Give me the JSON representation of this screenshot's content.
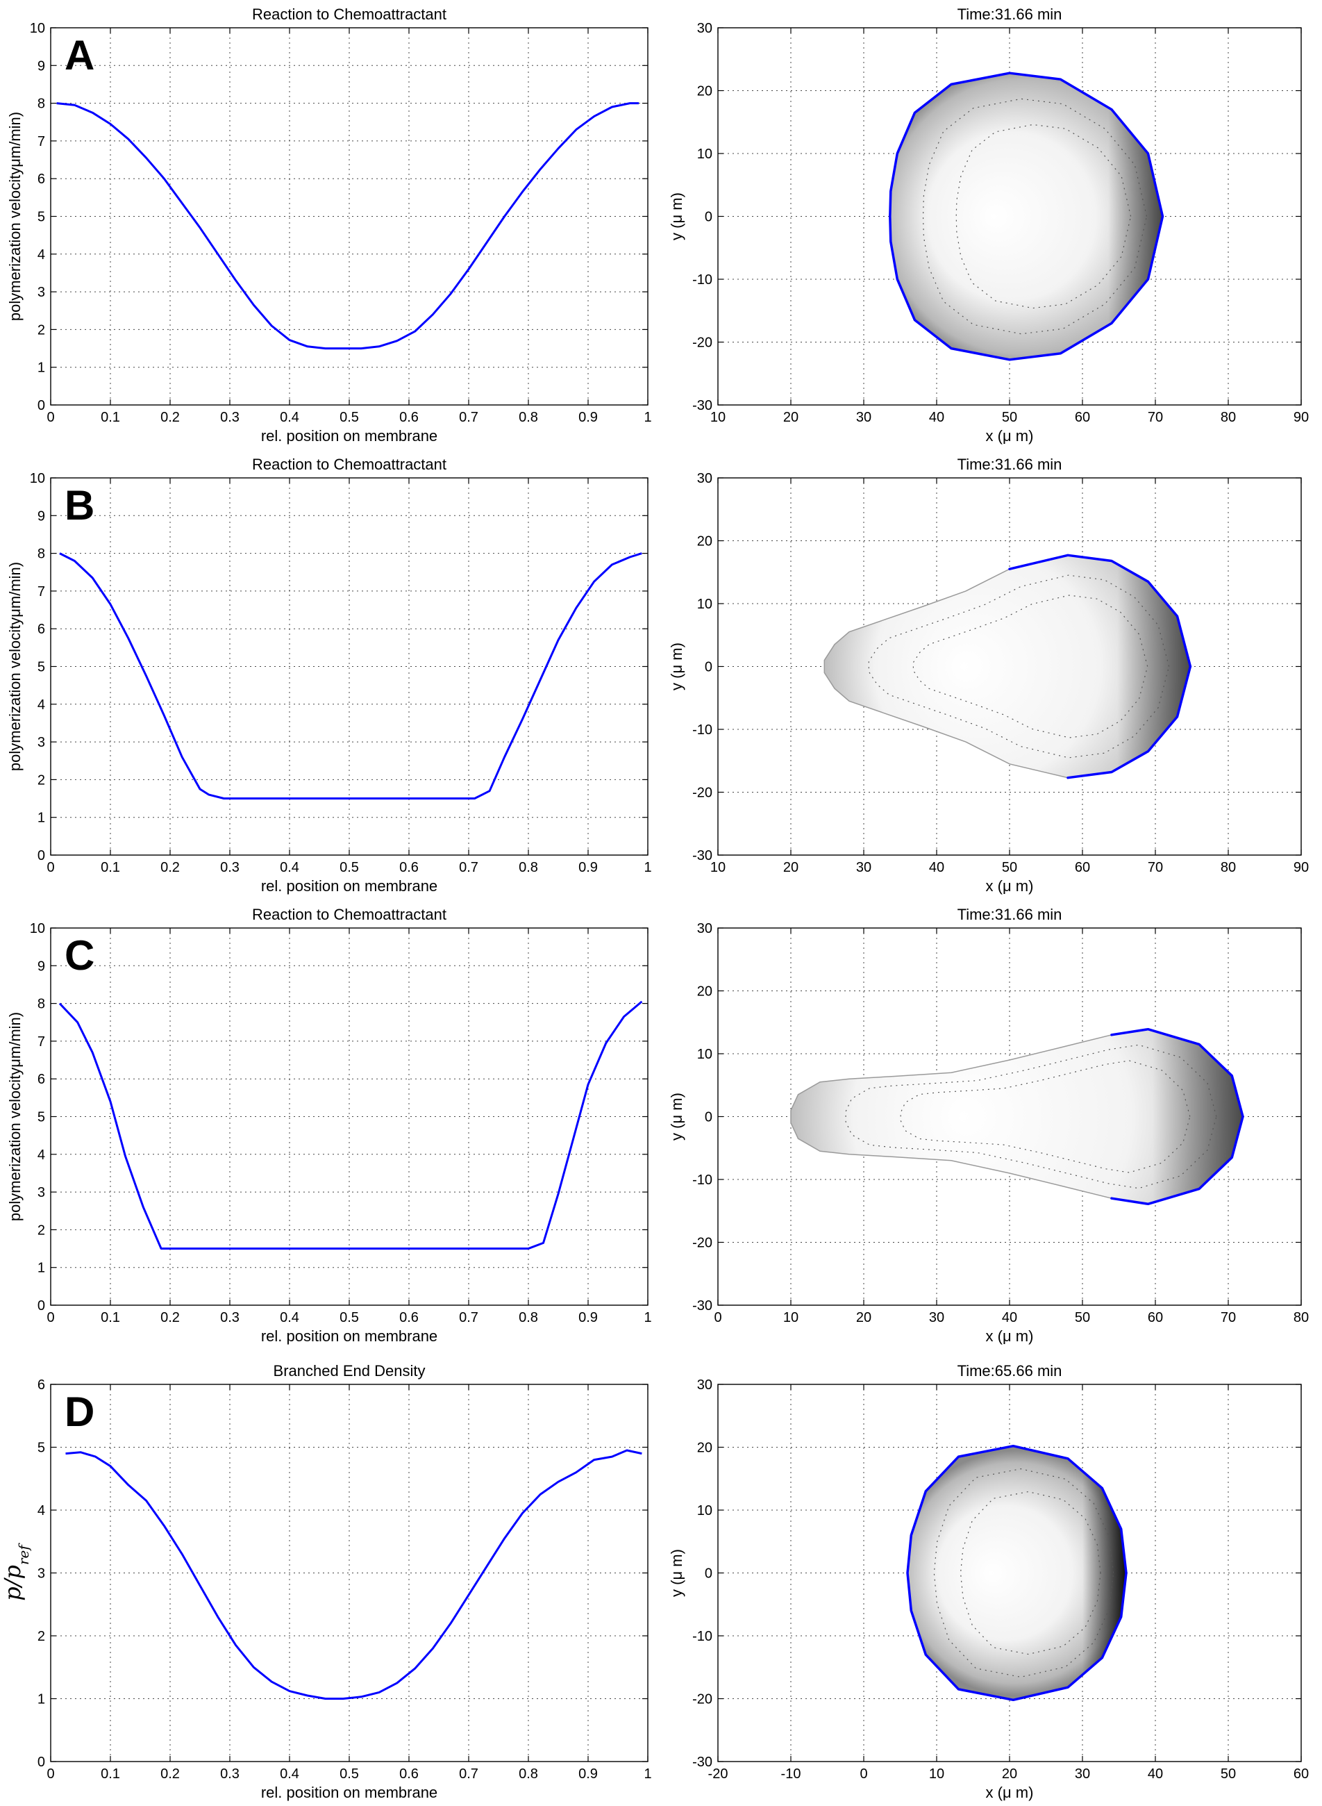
{
  "chart_data": [
    {
      "id": "A-left",
      "panel_letter": "A",
      "type": "line",
      "title": "Reaction to Chemoattractant",
      "xlabel": "rel. position on membrane",
      "ylabel": "polymerization velocityμm/min)",
      "xlim": [
        0,
        1
      ],
      "ylim": [
        0,
        10
      ],
      "xticks": [
        0,
        0.1,
        0.2,
        0.3,
        0.4,
        0.5,
        0.6,
        0.7,
        0.8,
        0.9,
        1
      ],
      "yticks": [
        0,
        1,
        2,
        3,
        4,
        5,
        6,
        7,
        8,
        9,
        10
      ],
      "xtick_labels": [
        "0",
        "0.1",
        "0.2",
        "0.3",
        "0.4",
        "0.5",
        "0.6",
        "0.7",
        "0.8",
        "0.9",
        "1"
      ],
      "ytick_labels": [
        "0",
        "1",
        "2",
        "3",
        "4",
        "5",
        "6",
        "7",
        "8",
        "9",
        "10"
      ],
      "grid": true,
      "series_color": "#0000ff",
      "x": [
        0.01,
        0.04,
        0.07,
        0.1,
        0.13,
        0.16,
        0.19,
        0.22,
        0.25,
        0.28,
        0.31,
        0.34,
        0.37,
        0.4,
        0.43,
        0.46,
        0.49,
        0.52,
        0.55,
        0.58,
        0.61,
        0.64,
        0.67,
        0.7,
        0.73,
        0.76,
        0.79,
        0.82,
        0.85,
        0.88,
        0.91,
        0.94,
        0.97,
        0.985
      ],
      "y": [
        8.0,
        7.95,
        7.75,
        7.45,
        7.05,
        6.55,
        6.0,
        5.35,
        4.7,
        4.0,
        3.3,
        2.65,
        2.1,
        1.72,
        1.55,
        1.5,
        1.5,
        1.5,
        1.55,
        1.7,
        1.95,
        2.4,
        2.95,
        3.6,
        4.3,
        5.0,
        5.65,
        6.25,
        6.8,
        7.3,
        7.65,
        7.9,
        8.0,
        8.0
      ]
    },
    {
      "id": "A-right",
      "type": "shape",
      "title": "Time:31.66 min",
      "xlabel": "x (μ m)",
      "ylabel": "y (μ m)",
      "xlim": [
        10,
        90
      ],
      "ylim": [
        -30,
        30
      ],
      "xticks": [
        10,
        20,
        30,
        40,
        50,
        60,
        70,
        80,
        90
      ],
      "yticks": [
        -30,
        -20,
        -10,
        0,
        10,
        20,
        30
      ],
      "xtick_labels": [
        "10",
        "20",
        "30",
        "40",
        "50",
        "60",
        "70",
        "80",
        "90"
      ],
      "ytick_labels": [
        "-30",
        "-20",
        "-10",
        "0",
        "10",
        "20",
        "30"
      ],
      "grid": true,
      "shading": "front",
      "dark_alpha": 0.62,
      "outline": [
        [
          71,
          0
        ],
        [
          69,
          10
        ],
        [
          64,
          17
        ],
        [
          57,
          21.8
        ],
        [
          50,
          22.8
        ],
        [
          42,
          21
        ],
        [
          37,
          16.5
        ],
        [
          34.6,
          10
        ],
        [
          33.7,
          4
        ],
        [
          33.6,
          0
        ],
        [
          33.7,
          -4
        ],
        [
          34.6,
          -10
        ],
        [
          37,
          -16.5
        ],
        [
          42,
          -21
        ],
        [
          50,
          -22.8
        ],
        [
          57,
          -21.8
        ],
        [
          64,
          -17
        ],
        [
          69,
          -10
        ]
      ],
      "blue_ranges": [
        [
          0,
          18
        ]
      ]
    },
    {
      "id": "B-left",
      "panel_letter": "B",
      "type": "line",
      "title": "Reaction to Chemoattractant",
      "xlabel": "rel. position on membrane",
      "ylabel": "polymerization velocityμm/min)",
      "xlim": [
        0,
        1
      ],
      "ylim": [
        0,
        10
      ],
      "xticks": [
        0,
        0.1,
        0.2,
        0.3,
        0.4,
        0.5,
        0.6,
        0.7,
        0.8,
        0.9,
        1
      ],
      "yticks": [
        0,
        1,
        2,
        3,
        4,
        5,
        6,
        7,
        8,
        9,
        10
      ],
      "xtick_labels": [
        "0",
        "0.1",
        "0.2",
        "0.3",
        "0.4",
        "0.5",
        "0.6",
        "0.7",
        "0.8",
        "0.9",
        "1"
      ],
      "ytick_labels": [
        "0",
        "1",
        "2",
        "3",
        "4",
        "5",
        "6",
        "7",
        "8",
        "9",
        "10"
      ],
      "grid": true,
      "series_color": "#0000ff",
      "x": [
        0.015,
        0.04,
        0.07,
        0.1,
        0.13,
        0.16,
        0.19,
        0.22,
        0.25,
        0.265,
        0.29,
        0.71,
        0.735,
        0.76,
        0.79,
        0.82,
        0.85,
        0.88,
        0.91,
        0.94,
        0.97,
        0.99
      ],
      "y": [
        8.0,
        7.8,
        7.35,
        6.65,
        5.75,
        4.75,
        3.7,
        2.6,
        1.75,
        1.6,
        1.5,
        1.5,
        1.7,
        2.6,
        3.6,
        4.65,
        5.7,
        6.55,
        7.25,
        7.7,
        7.9,
        8.0
      ]
    },
    {
      "id": "B-right",
      "type": "shape",
      "title": "Time:31.66 min",
      "xlabel": "x (μ m)",
      "ylabel": "y (μ m)",
      "xlim": [
        10,
        90
      ],
      "ylim": [
        -30,
        30
      ],
      "xticks": [
        10,
        20,
        30,
        40,
        50,
        60,
        70,
        80,
        90
      ],
      "yticks": [
        -30,
        -20,
        -10,
        0,
        10,
        20,
        30
      ],
      "xtick_labels": [
        "10",
        "20",
        "30",
        "40",
        "50",
        "60",
        "70",
        "80",
        "90"
      ],
      "ytick_labels": [
        "-30",
        "-20",
        "-10",
        "0",
        "10",
        "20",
        "30"
      ],
      "grid": true,
      "shading": "front",
      "dark_alpha": 0.6,
      "outline": [
        [
          74.8,
          0
        ],
        [
          73,
          8
        ],
        [
          69,
          13.5
        ],
        [
          64,
          16.8
        ],
        [
          58,
          17.7
        ],
        [
          50,
          15.5
        ],
        [
          44,
          12
        ],
        [
          38,
          9.5
        ],
        [
          33,
          7.5
        ],
        [
          28,
          5.5
        ],
        [
          26,
          3.5
        ],
        [
          24.6,
          1
        ],
        [
          24.6,
          -1
        ],
        [
          26,
          -3.5
        ],
        [
          28,
          -5.5
        ],
        [
          33,
          -7.5
        ],
        [
          38,
          -9.5
        ],
        [
          44,
          -12
        ],
        [
          50,
          -15.5
        ],
        [
          58,
          -17.7
        ],
        [
          64,
          -16.8
        ],
        [
          69,
          -13.5
        ],
        [
          73,
          -8
        ]
      ],
      "blue_ranges": [
        [
          0,
          5
        ],
        [
          19,
          23
        ]
      ]
    },
    {
      "id": "C-left",
      "panel_letter": "C",
      "type": "line",
      "title": "Reaction to Chemoattractant",
      "xlabel": "rel. position on membrane",
      "ylabel": "polymerization velocityμm/min)",
      "xlim": [
        0,
        1
      ],
      "ylim": [
        0,
        10
      ],
      "xticks": [
        0,
        0.1,
        0.2,
        0.3,
        0.4,
        0.5,
        0.6,
        0.7,
        0.8,
        0.9,
        1
      ],
      "yticks": [
        0,
        1,
        2,
        3,
        4,
        5,
        6,
        7,
        8,
        9,
        10
      ],
      "xtick_labels": [
        "0",
        "0.1",
        "0.2",
        "0.3",
        "0.4",
        "0.5",
        "0.6",
        "0.7",
        "0.8",
        "0.9",
        "1"
      ],
      "ytick_labels": [
        "0",
        "1",
        "2",
        "3",
        "4",
        "5",
        "6",
        "7",
        "8",
        "9",
        "10"
      ],
      "grid": true,
      "series_color": "#0000ff",
      "x": [
        0.015,
        0.045,
        0.07,
        0.1,
        0.125,
        0.155,
        0.185,
        0.8,
        0.825,
        0.85,
        0.875,
        0.9,
        0.93,
        0.96,
        0.99
      ],
      "y": [
        8.0,
        7.5,
        6.7,
        5.4,
        3.95,
        2.6,
        1.5,
        1.5,
        1.65,
        2.95,
        4.4,
        5.85,
        6.95,
        7.65,
        8.05
      ]
    },
    {
      "id": "C-right",
      "type": "shape",
      "title": "Time:31.66 min",
      "xlabel": "x (μ m)",
      "ylabel": "y (μ m)",
      "xlim": [
        0,
        80
      ],
      "ylim": [
        -30,
        30
      ],
      "xticks": [
        0,
        10,
        20,
        30,
        40,
        50,
        60,
        70,
        80
      ],
      "yticks": [
        -30,
        -20,
        -10,
        0,
        10,
        20,
        30
      ],
      "xtick_labels": [
        "0",
        "10",
        "20",
        "30",
        "40",
        "50",
        "60",
        "70",
        "80"
      ],
      "ytick_labels": [
        "-30",
        "-20",
        "-10",
        "0",
        "10",
        "20",
        "30"
      ],
      "grid": true,
      "shading": "front",
      "dark_alpha": 0.6,
      "outline": [
        [
          72,
          0
        ],
        [
          70.5,
          6.5
        ],
        [
          66,
          11.5
        ],
        [
          59,
          13.9
        ],
        [
          54,
          13
        ],
        [
          47,
          11
        ],
        [
          40,
          9
        ],
        [
          32,
          7
        ],
        [
          24,
          6.4
        ],
        [
          18,
          6
        ],
        [
          14,
          5.5
        ],
        [
          11,
          3.5
        ],
        [
          10,
          1
        ],
        [
          10,
          -1
        ],
        [
          11,
          -3.5
        ],
        [
          14,
          -5.5
        ],
        [
          18,
          -6
        ],
        [
          24,
          -6.4
        ],
        [
          32,
          -7
        ],
        [
          40,
          -9
        ],
        [
          47,
          -11
        ],
        [
          54,
          -13
        ],
        [
          59,
          -13.9
        ],
        [
          66,
          -11.5
        ],
        [
          70.5,
          -6.5
        ]
      ],
      "blue_ranges": [
        [
          0,
          4
        ],
        [
          21,
          25
        ]
      ]
    },
    {
      "id": "D-left",
      "panel_letter": "D",
      "type": "line",
      "title": "Branched End Density",
      "xlabel": "rel. position on membrane",
      "ylabel": "p/p",
      "ylabel_subscript": "ref",
      "xlim": [
        0,
        1
      ],
      "ylim": [
        0,
        6
      ],
      "xticks": [
        0,
        0.1,
        0.2,
        0.3,
        0.4,
        0.5,
        0.6,
        0.7,
        0.8,
        0.9,
        1
      ],
      "yticks": [
        0,
        1,
        2,
        3,
        4,
        5,
        6
      ],
      "xtick_labels": [
        "0",
        "0.1",
        "0.2",
        "0.3",
        "0.4",
        "0.5",
        "0.6",
        "0.7",
        "0.8",
        "0.9",
        "1"
      ],
      "ytick_labels": [
        "0",
        "1",
        "2",
        "3",
        "4",
        "5",
        "6"
      ],
      "grid": true,
      "series_color": "#0000ff",
      "x": [
        0.025,
        0.05,
        0.075,
        0.1,
        0.13,
        0.16,
        0.19,
        0.22,
        0.25,
        0.28,
        0.31,
        0.34,
        0.37,
        0.4,
        0.43,
        0.46,
        0.49,
        0.52,
        0.55,
        0.58,
        0.61,
        0.64,
        0.67,
        0.7,
        0.73,
        0.76,
        0.79,
        0.82,
        0.85,
        0.88,
        0.91,
        0.94,
        0.965,
        0.99
      ],
      "y": [
        4.9,
        4.92,
        4.85,
        4.7,
        4.4,
        4.15,
        3.75,
        3.3,
        2.8,
        2.3,
        1.85,
        1.5,
        1.27,
        1.12,
        1.05,
        1.0,
        1.0,
        1.03,
        1.1,
        1.25,
        1.48,
        1.8,
        2.2,
        2.65,
        3.1,
        3.55,
        3.95,
        4.25,
        4.45,
        4.6,
        4.8,
        4.85,
        4.95,
        4.9
      ]
    },
    {
      "id": "D-right",
      "type": "shape",
      "title": "Time:65.66 min",
      "xlabel": "x (μ m)",
      "ylabel": "y (μ m)",
      "xlim": [
        -20,
        60
      ],
      "ylim": [
        -30,
        30
      ],
      "xticks": [
        -20,
        -10,
        0,
        10,
        20,
        30,
        40,
        50,
        60
      ],
      "yticks": [
        -30,
        -20,
        -10,
        0,
        10,
        20,
        30
      ],
      "xtick_labels": [
        "-20",
        "-10",
        "0",
        "10",
        "20",
        "30",
        "40",
        "50",
        "60"
      ],
      "ytick_labels": [
        "-30",
        "-20",
        "-10",
        "0",
        "10",
        "20",
        "30"
      ],
      "grid": true,
      "shading": "front",
      "dark_alpha": 0.92,
      "outline": [
        [
          36,
          0
        ],
        [
          35.3,
          7
        ],
        [
          32.7,
          13.5
        ],
        [
          28,
          18.2
        ],
        [
          20.5,
          20.2
        ],
        [
          13,
          18.5
        ],
        [
          8.5,
          13
        ],
        [
          6.5,
          6
        ],
        [
          6,
          0
        ],
        [
          6.5,
          -6
        ],
        [
          8.5,
          -13
        ],
        [
          13,
          -18.5
        ],
        [
          20.5,
          -20.2
        ],
        [
          28,
          -18.2
        ],
        [
          32.7,
          -13.5
        ],
        [
          35.3,
          -7
        ]
      ],
      "blue_ranges": [
        [
          0,
          16
        ]
      ]
    }
  ]
}
